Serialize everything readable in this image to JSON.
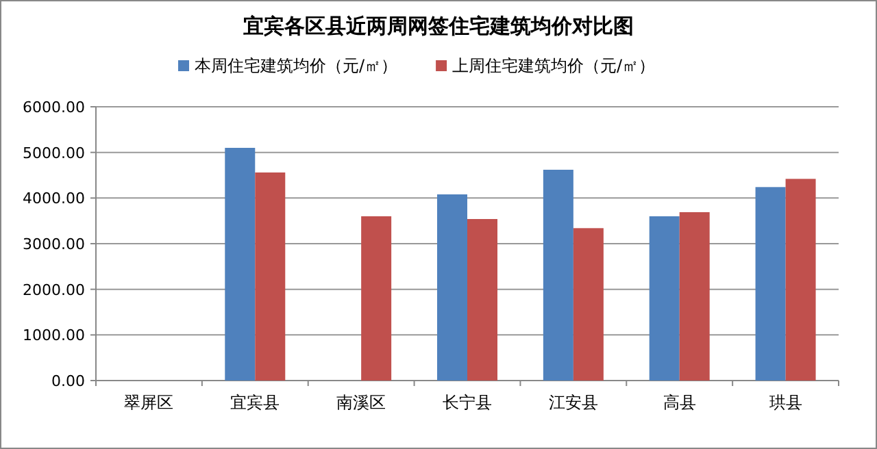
{
  "chart_data": {
    "type": "bar",
    "title": "宜宾各区县近两周网签住宅建筑均价对比图",
    "categories": [
      "翠屏区",
      "宜宾县",
      "南溪区",
      "长宁县",
      "江安县",
      "高县",
      "珙县"
    ],
    "series": [
      {
        "name": "本周住宅建筑均价（元/㎡）",
        "color": "#4f81bd",
        "values": [
          null,
          5100,
          null,
          4080,
          4620,
          3600,
          4240
        ]
      },
      {
        "name": "上周住宅建筑均价（元/㎡）",
        "color": "#c0504d",
        "values": [
          null,
          4560,
          3600,
          3540,
          3340,
          3690,
          4420
        ]
      }
    ],
    "ylim": [
      0,
      6000
    ],
    "yticks": [
      {
        "value": 0,
        "label": "0.00"
      },
      {
        "value": 1000,
        "label": "1000.00"
      },
      {
        "value": 2000,
        "label": "2000.00"
      },
      {
        "value": 3000,
        "label": "3000.00"
      },
      {
        "value": 4000,
        "label": "4000.00"
      },
      {
        "value": 5000,
        "label": "5000.00"
      },
      {
        "value": 6000,
        "label": "6000.00"
      }
    ],
    "grid": "y",
    "legend": "top"
  }
}
